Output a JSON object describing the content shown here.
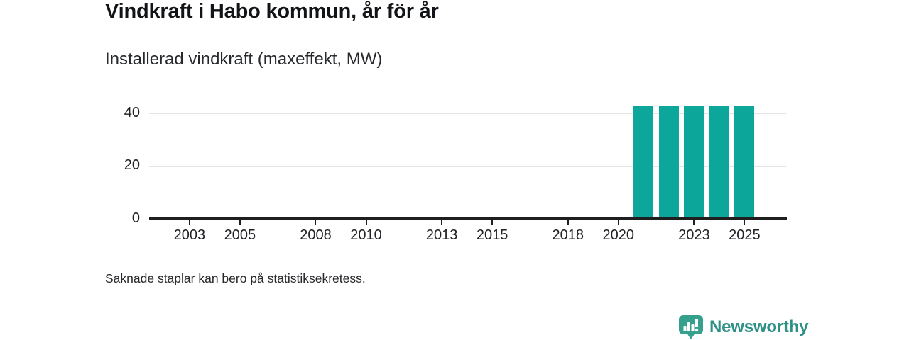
{
  "header": {
    "title": "Vindkraft i Habo kommun, år för år",
    "subtitle": "Installerad vindkraft (maxeffekt, MW)"
  },
  "chart_data": {
    "type": "bar",
    "title": "Vindkraft i Habo kommun, år för år",
    "subtitle": "Installerad vindkraft (maxeffekt, MW)",
    "xlabel": "",
    "ylabel": "",
    "unit": "MW",
    "categories": [
      2021,
      2022,
      2023,
      2024,
      2025
    ],
    "values": [
      43,
      43,
      43,
      43,
      43
    ],
    "x_domain": [
      2001.4,
      2026.65
    ],
    "x_ticks": [
      2003,
      2005,
      2008,
      2010,
      2013,
      2015,
      2018,
      2020,
      2023,
      2025
    ],
    "y_ticks": [
      0,
      20,
      40
    ],
    "ylim": [
      0,
      45.5
    ],
    "grid": "horizontal",
    "legend_position": "none",
    "colors": {
      "bar": "#0ca69b",
      "grid": "#e4e4e4",
      "axis": "#1f1f1f",
      "tick_text": "#202225"
    }
  },
  "footnote": "Saknade staplar kan bero på statistiksekretess.",
  "branding": {
    "name": "Newsworthy",
    "icon": "newsworthy-speech-bubble-bar-chart-icon",
    "icon_color": "#36a08f",
    "text_color": "#2f9088"
  }
}
